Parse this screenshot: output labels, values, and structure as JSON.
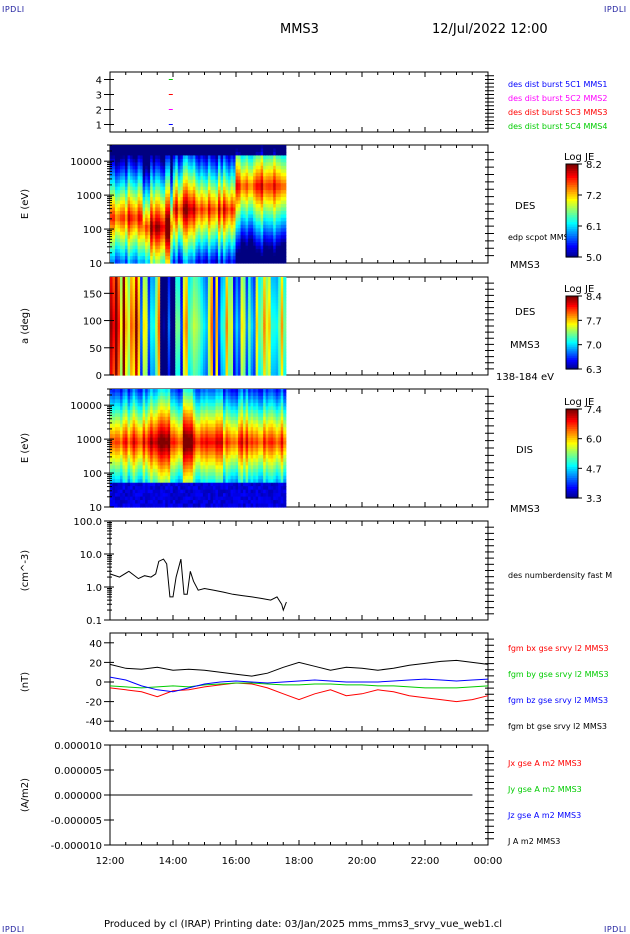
{
  "header": {
    "corner_left_top": "IPDLI",
    "corner_right_top": "IPDLI",
    "corner_left_bottom": "IPDLI",
    "corner_right_bottom": "IPDLI",
    "spacecraft": "MMS3",
    "date": "12/Jul/2022 12:00"
  },
  "footer": {
    "text": "Produced by cl (IRAP)   Printing date: 03/Jan/2025   mms_mms3_srvy_vue_web1.cl"
  },
  "colors": {
    "blue": "#0000ff",
    "magenta": "#ff00ff",
    "red": "#ff0000",
    "green": "#00cc00",
    "black": "#000000"
  },
  "chart_data": [
    {
      "type": "scatter",
      "panel": "burst-coverage",
      "x_range": [
        "12:00",
        "00:00"
      ],
      "ylim": [
        0.5,
        4.5
      ],
      "yticks": [
        "1",
        "2",
        "3",
        "4"
      ],
      "series": [
        {
          "name": "des dist burst 5C1 MMS1",
          "color": "#0000ff",
          "y": 1,
          "x": [
            13.93
          ]
        },
        {
          "name": "des dist burst 5C2 MMS2",
          "color": "#ff00ff",
          "y": 2,
          "x": [
            13.93
          ]
        },
        {
          "name": "des dist burst 5C3 MMS3",
          "color": "#ff0000",
          "y": 3,
          "x": [
            13.93
          ]
        },
        {
          "name": "des dist burst 5C4 MMS4",
          "color": "#00cc00",
          "y": 4,
          "x": [
            13.93
          ]
        }
      ]
    },
    {
      "type": "heatmap",
      "panel": "des-energy",
      "ylabel": "E (eV)",
      "yscale": "log",
      "ylim": [
        10,
        30000
      ],
      "yticks": [
        "10",
        "100",
        "1000",
        "10000"
      ],
      "x_extent": [
        "12:00",
        "17:35"
      ],
      "label": "DES",
      "sublabel": "edp scpot MMS3",
      "spacecraft": "MMS3",
      "colorbar": {
        "title": "Log JE",
        "ticks": [
          "8.2",
          "7.2",
          "6.1",
          "5.0"
        ],
        "range": [
          5.0,
          8.2
        ]
      }
    },
    {
      "type": "heatmap",
      "panel": "des-pitch-angle",
      "ylabel": "a (deg)",
      "ylim": [
        0,
        180
      ],
      "yticks": [
        "0",
        "50",
        "100",
        "150"
      ],
      "x_extent": [
        "12:00",
        "17:35"
      ],
      "label": "DES",
      "spacecraft": "MMS3",
      "energy_band": "138-184 eV",
      "colorbar": {
        "title": "Log JE",
        "ticks": [
          "8.4",
          "7.7",
          "7.0",
          "6.3"
        ],
        "range": [
          6.3,
          8.4
        ]
      }
    },
    {
      "type": "heatmap",
      "panel": "dis-energy",
      "ylabel": "E (eV)",
      "yscale": "log",
      "ylim": [
        10,
        30000
      ],
      "yticks": [
        "10",
        "100",
        "1000",
        "10000"
      ],
      "x_extent": [
        "12:00",
        "17:35"
      ],
      "label": "DIS",
      "spacecraft": "MMS3",
      "colorbar": {
        "title": "Log JE",
        "ticks": [
          "7.4",
          "6.0",
          "4.7",
          "3.3"
        ],
        "range": [
          3.3,
          7.4
        ]
      }
    },
    {
      "type": "line",
      "panel": "density",
      "ylabel": "(cm^-3)",
      "yscale": "log",
      "ylim": [
        0.1,
        100
      ],
      "yticks": [
        "0.1",
        "1.0",
        "10.0",
        "100.0"
      ],
      "series": [
        {
          "name": "des numberdensity fast M",
          "color": "#000000",
          "x": [
            12.0,
            12.3,
            12.6,
            12.9,
            13.1,
            13.3,
            13.45,
            13.55,
            13.7,
            13.8,
            13.9,
            14.0,
            14.1,
            14.25,
            14.35,
            14.45,
            14.55,
            14.65,
            14.8,
            15.0,
            15.3,
            15.6,
            15.9,
            16.2,
            16.5,
            16.8,
            17.1,
            17.3,
            17.45,
            17.5,
            17.6
          ],
          "y": [
            2.5,
            2.0,
            3.0,
            1.8,
            2.2,
            2.0,
            2.5,
            6.0,
            7.0,
            5.0,
            0.5,
            0.5,
            2.0,
            7.0,
            0.6,
            0.6,
            3.0,
            1.5,
            0.8,
            0.9,
            0.8,
            0.7,
            0.6,
            0.55,
            0.5,
            0.45,
            0.4,
            0.5,
            0.3,
            0.2,
            0.35
          ]
        }
      ]
    },
    {
      "type": "line",
      "panel": "magnetic-field",
      "ylabel": "(nT)",
      "ylim": [
        -50,
        50
      ],
      "yticks": [
        "-40",
        "-20",
        "0",
        "20",
        "40"
      ],
      "series": [
        {
          "name": "fgm bx gse srvy l2 MMS3",
          "color": "#ff0000",
          "x": [
            12.0,
            12.5,
            13.0,
            13.5,
            14.0,
            14.5,
            15.0,
            15.5,
            16.0,
            16.5,
            17.0,
            17.5,
            18.0,
            18.5,
            19.0,
            19.5,
            20.0,
            20.5,
            21.0,
            21.5,
            22.0,
            22.5,
            23.0,
            23.5,
            24.0
          ],
          "y": [
            -6,
            -8,
            -10,
            -15,
            -9,
            -8,
            -5,
            -3,
            -1,
            -2,
            -6,
            -12,
            -18,
            -12,
            -8,
            -14,
            -12,
            -8,
            -10,
            -14,
            -16,
            -18,
            -20,
            -18,
            -14
          ]
        },
        {
          "name": "fgm by gse srvy l2 MMS3",
          "color": "#00cc00",
          "x": [
            12.0,
            12.5,
            13.0,
            13.5,
            14.0,
            14.5,
            15.0,
            15.5,
            16.0,
            16.5,
            17.0,
            17.5,
            18.0,
            18.5,
            19.0,
            19.5,
            20.0,
            20.5,
            21.0,
            21.5,
            22.0,
            22.5,
            23.0,
            23.5,
            24.0
          ],
          "y": [
            -4,
            -5,
            -6,
            -5,
            -4,
            -5,
            -3,
            -2,
            -1,
            -1,
            -2,
            -3,
            -3,
            -2,
            -2,
            -3,
            -3,
            -4,
            -4,
            -5,
            -6,
            -6,
            -6,
            -5,
            -4
          ]
        },
        {
          "name": "fgm bz gse srvy l2 MMS3",
          "color": "#0000ff",
          "x": [
            12.0,
            12.5,
            13.0,
            13.5,
            14.0,
            14.5,
            15.0,
            15.5,
            16.0,
            16.5,
            17.0,
            17.5,
            18.0,
            18.5,
            19.0,
            19.5,
            20.0,
            20.5,
            21.0,
            21.5,
            22.0,
            22.5,
            23.0,
            23.5,
            24.0
          ],
          "y": [
            5,
            2,
            -4,
            -8,
            -10,
            -6,
            -2,
            0,
            1,
            0,
            -1,
            0,
            1,
            2,
            1,
            0,
            0,
            0,
            1,
            2,
            3,
            2,
            1,
            2,
            3
          ]
        },
        {
          "name": "fgm bt gse srvy l2 MMS3",
          "color": "#000000",
          "x": [
            12.0,
            12.5,
            13.0,
            13.5,
            14.0,
            14.5,
            15.0,
            15.5,
            16.0,
            16.5,
            17.0,
            17.5,
            18.0,
            18.5,
            19.0,
            19.5,
            20.0,
            20.5,
            21.0,
            21.5,
            22.0,
            22.5,
            23.0,
            23.5,
            24.0
          ],
          "y": [
            18,
            14,
            13,
            15,
            12,
            13,
            12,
            10,
            8,
            6,
            9,
            15,
            20,
            16,
            12,
            15,
            14,
            12,
            14,
            17,
            19,
            21,
            22,
            20,
            18
          ]
        }
      ]
    },
    {
      "type": "line",
      "panel": "current-density",
      "ylabel": "(A/m2)",
      "ylim": [
        -1e-05,
        1e-05
      ],
      "yticks": [
        "-0.000010",
        "-0.000005",
        "0.000000",
        "0.000005",
        "0.000010"
      ],
      "xticks": [
        "12:00",
        "14:00",
        "16:00",
        "18:00",
        "20:00",
        "22:00",
        "00:00"
      ],
      "series": [
        {
          "name": "Jx gse A m2 MMS3",
          "color": "#ff0000",
          "x": [
            12.0,
            23.5
          ],
          "y": [
            0,
            0
          ]
        },
        {
          "name": "Jy gse A m2 MMS3",
          "color": "#00cc00",
          "x": [
            12.0,
            23.5
          ],
          "y": [
            0,
            0
          ]
        },
        {
          "name": "Jz gse A m2 MMS3",
          "color": "#0000ff",
          "x": [
            12.0,
            23.5
          ],
          "y": [
            0,
            0
          ]
        },
        {
          "name": "J A m2 MMS3",
          "color": "#000000",
          "x": [
            12.0,
            23.5
          ],
          "y": [
            0,
            0
          ]
        }
      ]
    }
  ]
}
